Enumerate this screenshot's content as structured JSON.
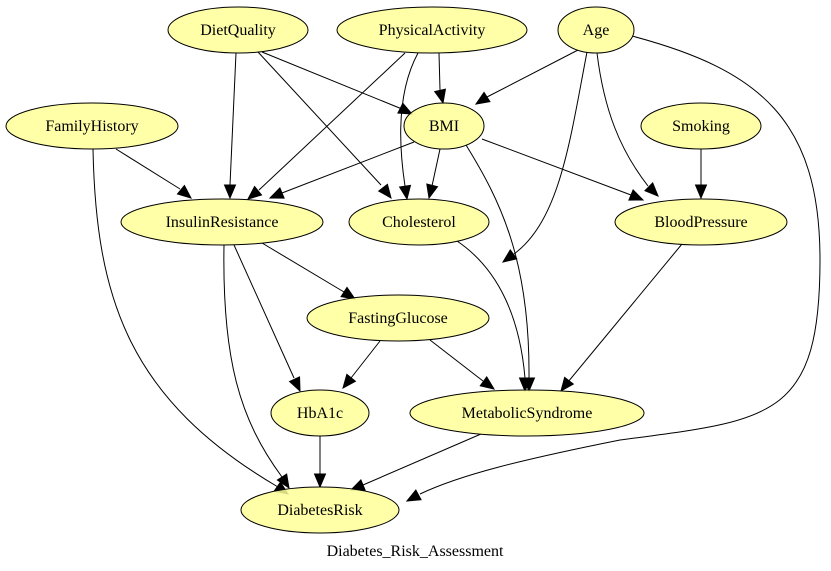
{
  "graph": {
    "title": "Diabetes_Risk_Assessment",
    "node_color": "#ffff99",
    "nodes": [
      {
        "id": "DietQuality",
        "label": "DietQuality"
      },
      {
        "id": "PhysicalActivity",
        "label": "PhysicalActivity"
      },
      {
        "id": "Age",
        "label": "Age"
      },
      {
        "id": "FamilyHistory",
        "label": "FamilyHistory"
      },
      {
        "id": "BMI",
        "label": "BMI"
      },
      {
        "id": "Smoking",
        "label": "Smoking"
      },
      {
        "id": "InsulinResistance",
        "label": "InsulinResistance"
      },
      {
        "id": "Cholesterol",
        "label": "Cholesterol"
      },
      {
        "id": "BloodPressure",
        "label": "BloodPressure"
      },
      {
        "id": "FastingGlucose",
        "label": "FastingGlucose"
      },
      {
        "id": "HbA1c",
        "label": "HbA1c"
      },
      {
        "id": "MetabolicSyndrome",
        "label": "MetabolicSyndrome"
      },
      {
        "id": "DiabetesRisk",
        "label": "DiabetesRisk"
      }
    ],
    "edges": [
      {
        "from": "DietQuality",
        "to": "BMI"
      },
      {
        "from": "DietQuality",
        "to": "InsulinResistance"
      },
      {
        "from": "DietQuality",
        "to": "Cholesterol"
      },
      {
        "from": "PhysicalActivity",
        "to": "BMI"
      },
      {
        "from": "PhysicalActivity",
        "to": "InsulinResistance"
      },
      {
        "from": "PhysicalActivity",
        "to": "Cholesterol"
      },
      {
        "from": "Age",
        "to": "BMI"
      },
      {
        "from": "Age",
        "to": "FastingGlucose"
      },
      {
        "from": "Age",
        "to": "BloodPressure"
      },
      {
        "from": "Age",
        "to": "DiabetesRisk"
      },
      {
        "from": "FamilyHistory",
        "to": "InsulinResistance"
      },
      {
        "from": "FamilyHistory",
        "to": "DiabetesRisk"
      },
      {
        "from": "BMI",
        "to": "InsulinResistance"
      },
      {
        "from": "BMI",
        "to": "Cholesterol"
      },
      {
        "from": "BMI",
        "to": "BloodPressure"
      },
      {
        "from": "BMI",
        "to": "MetabolicSyndrome"
      },
      {
        "from": "Smoking",
        "to": "BloodPressure"
      },
      {
        "from": "InsulinResistance",
        "to": "FastingGlucose"
      },
      {
        "from": "InsulinResistance",
        "to": "HbA1c"
      },
      {
        "from": "InsulinResistance",
        "to": "DiabetesRisk"
      },
      {
        "from": "Cholesterol",
        "to": "MetabolicSyndrome"
      },
      {
        "from": "BloodPressure",
        "to": "MetabolicSyndrome"
      },
      {
        "from": "FastingGlucose",
        "to": "HbA1c"
      },
      {
        "from": "FastingGlucose",
        "to": "MetabolicSyndrome"
      },
      {
        "from": "HbA1c",
        "to": "DiabetesRisk"
      },
      {
        "from": "MetabolicSyndrome",
        "to": "DiabetesRisk"
      }
    ]
  }
}
